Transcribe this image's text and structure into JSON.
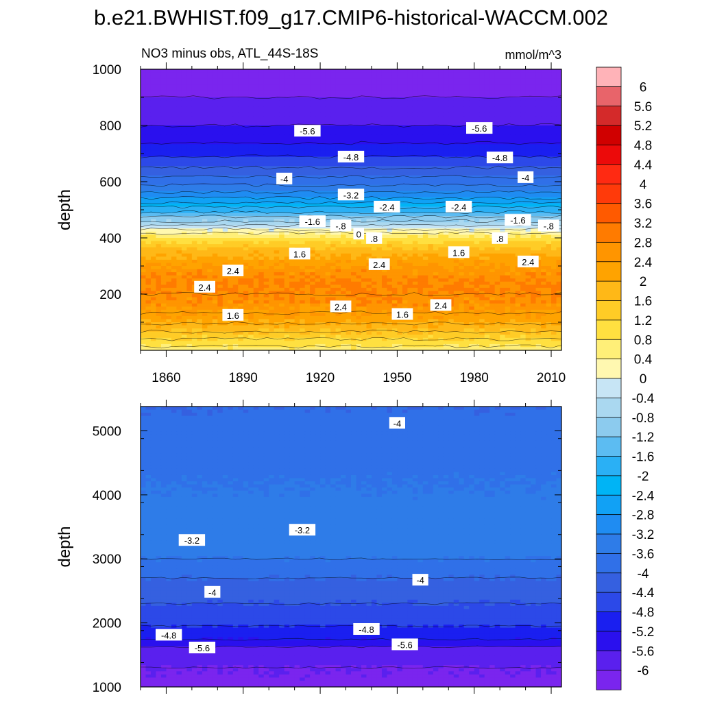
{
  "figure": {
    "title": "b.e21.BWHIST.f09_g17.CMIP6-historical-WACCM.002",
    "subtitle": "NO3 minus obs, ATL_44S-18S",
    "units": "mmol/m^3"
  },
  "colorbar": {
    "levels": [
      "6",
      "5.6",
      "5.2",
      "4.8",
      "4.4",
      "4",
      "3.6",
      "3.2",
      "2.8",
      "2.4",
      "2",
      "1.6",
      "1.2",
      "0.8",
      "0.4",
      "0",
      "-0.4",
      "-0.8",
      "-1.2",
      "-1.6",
      "-2",
      "-2.4",
      "-2.8",
      "-3.2",
      "-3.6",
      "-4",
      "-4.4",
      "-4.8",
      "-5.2",
      "-5.6",
      "-6"
    ],
    "colors": [
      "#ffb3b8",
      "#e8646a",
      "#d42a2a",
      "#d00000",
      "#ec0a0a",
      "#ff2a12",
      "#ff3a0a",
      "#ff5a00",
      "#ff7b00",
      "#ff9500",
      "#ffa300",
      "#ffb817",
      "#ffcc26",
      "#ffe040",
      "#ffef78",
      "#fff8b0",
      "#c7e5f5",
      "#aad8f0",
      "#8ccbee",
      "#5cbcf2",
      "#2ab0f5",
      "#00b4f5",
      "#11a1f5",
      "#1f8cf2",
      "#2e7ce8",
      "#3070e8",
      "#3560e0",
      "#2c49e8",
      "#1a1ff0",
      "#2a10ee",
      "#5a20ee",
      "#7a25ee"
    ]
  },
  "chart_data": [
    {
      "type": "heatmap",
      "title": "NO3 minus obs, ATL_44S-18S",
      "units": "mmol/m^3",
      "xlabel": "",
      "ylabel": "depth",
      "xlim": [
        1850,
        2014
      ],
      "ylim": [
        1000,
        0
      ],
      "x_ticks": [
        "1860",
        "1890",
        "1920",
        "1950",
        "1980",
        "2010"
      ],
      "x_tick_values": [
        1860,
        1890,
        1920,
        1950,
        1980,
        2010
      ],
      "y_ticks": [
        "200",
        "400",
        "600",
        "800",
        "1000"
      ],
      "y_tick_values": [
        200,
        400,
        600,
        800,
        1000
      ],
      "depth_profile": {
        "depth": [
          0,
          40,
          80,
          120,
          160,
          200,
          240,
          280,
          320,
          360,
          400,
          430,
          460,
          500,
          550,
          600,
          650,
          700,
          750,
          800,
          850,
          900,
          1000
        ],
        "value": [
          0.6,
          1.2,
          1.8,
          2.3,
          2.6,
          2.8,
          2.8,
          2.6,
          2.2,
          1.7,
          0.9,
          0.0,
          -0.8,
          -1.8,
          -3.0,
          -3.8,
          -4.4,
          -4.9,
          -5.3,
          -5.6,
          -5.8,
          -6.0,
          -6.1
        ]
      },
      "contour_labels": [
        {
          "text": "1.6",
          "year": 1886,
          "depth": 125
        },
        {
          "text": "2.4",
          "year": 1928,
          "depth": 155
        },
        {
          "text": "1.6",
          "year": 1952,
          "depth": 128
        },
        {
          "text": "2.4",
          "year": 1967,
          "depth": 160
        },
        {
          "text": "2.4",
          "year": 1875,
          "depth": 225
        },
        {
          "text": "2.4",
          "year": 1886,
          "depth": 283
        },
        {
          "text": "2.4",
          "year": 1943,
          "depth": 305
        },
        {
          "text": "2.4",
          "year": 2001,
          "depth": 315
        },
        {
          "text": "1.6",
          "year": 1912,
          "depth": 343
        },
        {
          "text": "1.6",
          "year": 1974,
          "depth": 348
        },
        {
          "text": ".8",
          "year": 1941,
          "depth": 398
        },
        {
          "text": ".8",
          "year": 1990,
          "depth": 398
        },
        {
          "text": "0",
          "year": 1935,
          "depth": 414
        },
        {
          "text": "-.8",
          "year": 1928,
          "depth": 443
        },
        {
          "text": "-.8",
          "year": 2009,
          "depth": 443
        },
        {
          "text": "-1.6",
          "year": 1917,
          "depth": 458
        },
        {
          "text": "-1.6",
          "year": 1997,
          "depth": 463
        },
        {
          "text": "-2.4",
          "year": 1946,
          "depth": 510
        },
        {
          "text": "-2.4",
          "year": 1974,
          "depth": 510
        },
        {
          "text": "-3.2",
          "year": 1932,
          "depth": 553
        },
        {
          "text": "-4",
          "year": 1906,
          "depth": 610
        },
        {
          "text": "-4",
          "year": 2000,
          "depth": 615
        },
        {
          "text": "-4.8",
          "year": 1932,
          "depth": 688
        },
        {
          "text": "-4.8",
          "year": 1990,
          "depth": 685
        },
        {
          "text": "-5.6",
          "year": 1915,
          "depth": 780
        },
        {
          "text": "-5.6",
          "year": 1982,
          "depth": 790
        }
      ]
    },
    {
      "type": "heatmap",
      "title": "",
      "units": "mmol/m^3",
      "xlabel": "",
      "ylabel": "depth",
      "xlim": [
        1850,
        2014
      ],
      "ylim": [
        5380,
        1000
      ],
      "x_ticks": [],
      "y_ticks": [
        "1000",
        "2000",
        "3000",
        "4000",
        "5000"
      ],
      "y_tick_values": [
        1000,
        2000,
        3000,
        4000,
        5000
      ],
      "depth_profile": {
        "depth": [
          1000,
          1300,
          1600,
          1800,
          2100,
          2500,
          2800,
          3000,
          3300,
          3800,
          4500,
          5100,
          5380
        ],
        "value": [
          -6.1,
          -6.0,
          -5.7,
          -5.0,
          -4.6,
          -4.2,
          -3.9,
          -3.6,
          -3.3,
          -3.5,
          -3.7,
          -3.9,
          -4.0
        ]
      },
      "contour_labels": [
        {
          "text": "-5.6",
          "year": 1874,
          "depth": 1610
        },
        {
          "text": "-5.6",
          "year": 1953,
          "depth": 1660
        },
        {
          "text": "-4.8",
          "year": 1861,
          "depth": 1810
        },
        {
          "text": "-4.8",
          "year": 1938,
          "depth": 1900
        },
        {
          "text": "-4",
          "year": 1878,
          "depth": 2480
        },
        {
          "text": "-4",
          "year": 1959,
          "depth": 2670
        },
        {
          "text": "-3.2",
          "year": 1870,
          "depth": 3290
        },
        {
          "text": "-3.2",
          "year": 1913,
          "depth": 3450
        },
        {
          "text": "-4",
          "year": 1950,
          "depth": 5120
        }
      ]
    }
  ]
}
